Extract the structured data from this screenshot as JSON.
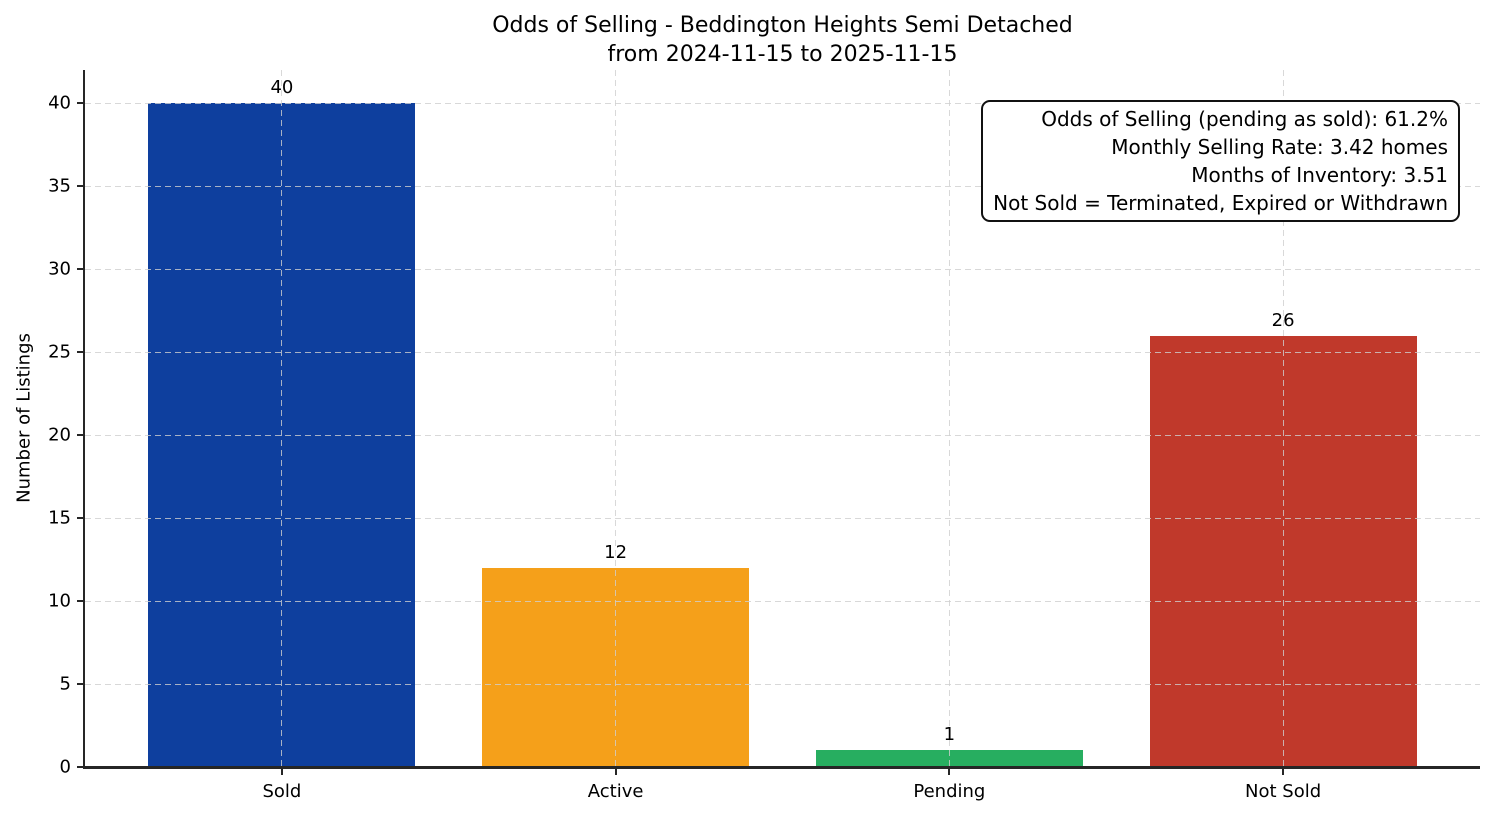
{
  "chart_data": {
    "type": "bar",
    "title": "Odds of Selling - Beddington Heights Semi Detached",
    "subtitle": "from 2024-11-15 to 2025-11-15",
    "categories": [
      "Sold",
      "Active",
      "Pending",
      "Not Sold"
    ],
    "values": [
      40,
      12,
      1,
      26
    ],
    "bar_value_labels": [
      "40",
      "12",
      "1",
      "26"
    ],
    "colors": [
      "#0e3f9e",
      "#f5a01a",
      "#27ae60",
      "#c0392b"
    ],
    "ylabel": "Number of Listings",
    "xlabel": "",
    "ylim": [
      0,
      42
    ],
    "yticks": [
      0,
      5,
      10,
      15,
      20,
      25,
      30,
      35,
      40
    ],
    "grid": {
      "visible": true,
      "linestyle": "dashed",
      "axes": "both",
      "color": "#d4d4d4"
    },
    "legend": null,
    "annotation_box": {
      "position": "top-right",
      "text_align": "right",
      "lines": [
        "Odds of Selling (pending as sold): 61.2%",
        "Monthly Selling Rate: 3.42 homes",
        "Months of Inventory: 3.51",
        "Not Sold = Terminated, Expired or Withdrawn"
      ]
    }
  }
}
